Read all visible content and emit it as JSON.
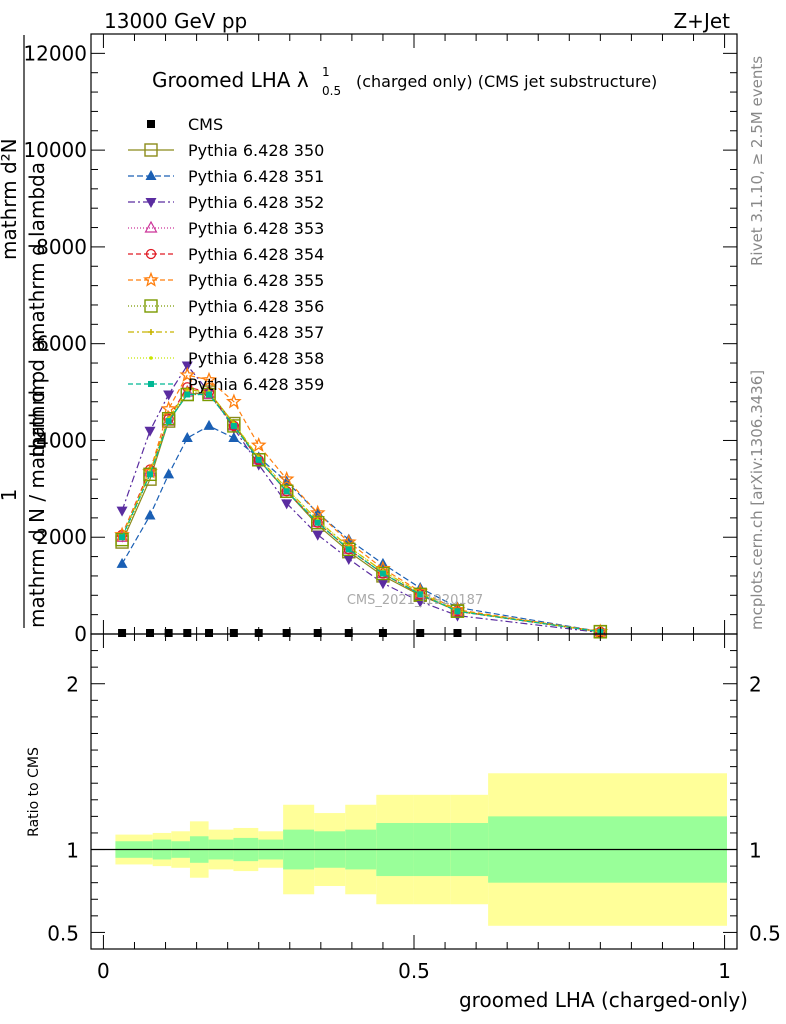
{
  "header": {
    "left": "13000 GeV pp",
    "right": "Z+Jet"
  },
  "side_labels": {
    "rivet": "Rivet 3.1.10, ≥ 2.5M events",
    "mcplots": "mcplots.cern.ch [arXiv:1306.3436]"
  },
  "watermark": "CMS_2021_I1920187",
  "chart_data": [
    {
      "type": "line",
      "title": "Groomed LHA λ",
      "title_sup": "1",
      "title_sub": "0.5",
      "title_suffix": "(charged only) (CMS jet substructure)",
      "ylabel": "1 / mathrm d N / mathrm d p_T mathrm d^2N / mathrm d p_T mathrm d lambda",
      "ylabel_lines": [
        "mathrm d²N",
        "mathrm d p",
        "mathrm d lambda",
        "mathrm d N / mathrm d p",
        "1"
      ],
      "xlim": [
        -0.02,
        1.02
      ],
      "ylim": [
        0,
        12400
      ],
      "yticks": [
        0,
        2000,
        4000,
        6000,
        8000,
        10000,
        12000
      ],
      "ytick_labels": [
        "0",
        "2000",
        "4000",
        "6000",
        "8000",
        "10000",
        "12000"
      ],
      "x": [
        0.03,
        0.075,
        0.105,
        0.135,
        0.17,
        0.21,
        0.25,
        0.295,
        0.345,
        0.395,
        0.45,
        0.51,
        0.57,
        0.8
      ],
      "legend_location": "top-left",
      "series": [
        {
          "name": "CMS",
          "color": "#000000",
          "marker": "square-filled",
          "dash": "",
          "values": [
            0,
            0,
            0,
            0,
            0,
            0,
            0,
            0,
            0,
            0,
            0,
            0,
            0,
            0
          ]
        },
        {
          "name": "Pythia 6.428 350",
          "color": "#8b8b1a",
          "marker": "square-open",
          "dash": "",
          "values": [
            1900,
            3200,
            4400,
            4950,
            5000,
            4350,
            3600,
            2950,
            2250,
            1700,
            1200,
            800,
            480,
            50
          ]
        },
        {
          "name": "Pythia 6.428 351",
          "color": "#1a5fb4",
          "marker": "triangle-up-filled",
          "dash": "6,3",
          "values": [
            1450,
            2450,
            3300,
            4050,
            4300,
            4050,
            3650,
            3150,
            2500,
            1950,
            1450,
            950,
            550,
            50
          ]
        },
        {
          "name": "Pythia 6.428 352",
          "color": "#5a2ca0",
          "marker": "triangle-down-filled",
          "dash": "7,3,2,3",
          "values": [
            2550,
            4200,
            4950,
            5550,
            5000,
            4250,
            3500,
            2700,
            2050,
            1550,
            1050,
            670,
            380,
            30
          ]
        },
        {
          "name": "Pythia 6.428 353",
          "color": "#cc3399",
          "marker": "triangle-up-open",
          "dash": "1,2",
          "values": [
            2000,
            3350,
            4400,
            5000,
            4950,
            4300,
            3600,
            2950,
            2300,
            1750,
            1250,
            820,
            470,
            45
          ]
        },
        {
          "name": "Pythia 6.428 354",
          "color": "#e01b24",
          "marker": "circle-open",
          "dash": "5,3",
          "values": [
            2050,
            3400,
            4450,
            5100,
            5000,
            4300,
            3600,
            2950,
            2300,
            1750,
            1250,
            820,
            470,
            45
          ]
        },
        {
          "name": "Pythia 6.428 355",
          "color": "#ff7f0e",
          "marker": "star-open",
          "dash": "5,3",
          "values": [
            2050,
            3350,
            4650,
            5350,
            5250,
            4800,
            3900,
            3200,
            2500,
            1900,
            1350,
            880,
            500,
            50
          ]
        },
        {
          "name": "Pythia 6.428 356",
          "color": "#7a9a00",
          "marker": "square-open",
          "dash": "1,2",
          "values": [
            1950,
            3300,
            4450,
            4950,
            4950,
            4300,
            3600,
            2950,
            2300,
            1750,
            1250,
            820,
            470,
            45
          ]
        },
        {
          "name": "Pythia 6.428 357",
          "color": "#c8b400",
          "marker": "star-small",
          "dash": "6,3,2,3",
          "values": [
            2000,
            3350,
            4450,
            5050,
            5000,
            4350,
            3650,
            3000,
            2350,
            1800,
            1300,
            850,
            480,
            45
          ]
        },
        {
          "name": "Pythia 6.428 358",
          "color": "#c8e600",
          "marker": "dot",
          "dash": "1,2",
          "values": [
            2000,
            3350,
            4450,
            5000,
            5000,
            4350,
            3650,
            3000,
            2350,
            1800,
            1300,
            850,
            480,
            45
          ]
        },
        {
          "name": "Pythia 6.428 359",
          "color": "#00b894",
          "marker": "square-filled-small",
          "dash": "5,3",
          "values": [
            2000,
            3300,
            4400,
            4950,
            4950,
            4300,
            3600,
            2950,
            2300,
            1750,
            1250,
            820,
            470,
            45
          ]
        }
      ]
    },
    {
      "type": "area",
      "ylabel": "Ratio to CMS",
      "xlabel": "groomed LHA (charged-only)",
      "xlim": [
        -0.02,
        1.02
      ],
      "ylim": [
        0.4,
        2.3
      ],
      "yticks": [
        0.5,
        1,
        2
      ],
      "ytick_labels": [
        "0.5",
        "1",
        "2"
      ],
      "xticks": [
        0,
        0.5,
        1
      ],
      "xtick_labels": [
        "0",
        "0.5",
        "1"
      ],
      "bins": [
        [
          0.0,
          0.06
        ],
        [
          0.06,
          0.09
        ],
        [
          0.09,
          0.12
        ],
        [
          0.12,
          0.15
        ],
        [
          0.15,
          0.19
        ],
        [
          0.19,
          0.23
        ],
        [
          0.23,
          0.27
        ],
        [
          0.27,
          0.32
        ],
        [
          0.32,
          0.37
        ],
        [
          0.37,
          0.42
        ],
        [
          0.42,
          0.48
        ],
        [
          0.48,
          0.54
        ],
        [
          0.54,
          0.6
        ],
        [
          0.6,
          1.0
        ]
      ],
      "stat_band": [
        [
          0.95,
          1.05
        ],
        [
          0.94,
          1.06
        ],
        [
          0.95,
          1.05
        ],
        [
          0.92,
          1.08
        ],
        [
          0.94,
          1.06
        ],
        [
          0.93,
          1.07
        ],
        [
          0.94,
          1.06
        ],
        [
          0.88,
          1.12
        ],
        [
          0.89,
          1.11
        ],
        [
          0.88,
          1.12
        ],
        [
          0.84,
          1.16
        ],
        [
          0.84,
          1.16
        ],
        [
          0.84,
          1.16
        ],
        [
          0.8,
          1.2
        ]
      ],
      "total_band": [
        [
          0.91,
          1.09
        ],
        [
          0.9,
          1.1
        ],
        [
          0.89,
          1.11
        ],
        [
          0.83,
          1.17
        ],
        [
          0.88,
          1.12
        ],
        [
          0.87,
          1.13
        ],
        [
          0.89,
          1.11
        ],
        [
          0.73,
          1.27
        ],
        [
          0.78,
          1.22
        ],
        [
          0.73,
          1.27
        ],
        [
          0.67,
          1.33
        ],
        [
          0.67,
          1.33
        ],
        [
          0.67,
          1.33
        ],
        [
          0.54,
          1.46
        ]
      ],
      "reference": 1,
      "colors": {
        "stat": "#99ff99",
        "total": "#ffff99"
      }
    }
  ]
}
